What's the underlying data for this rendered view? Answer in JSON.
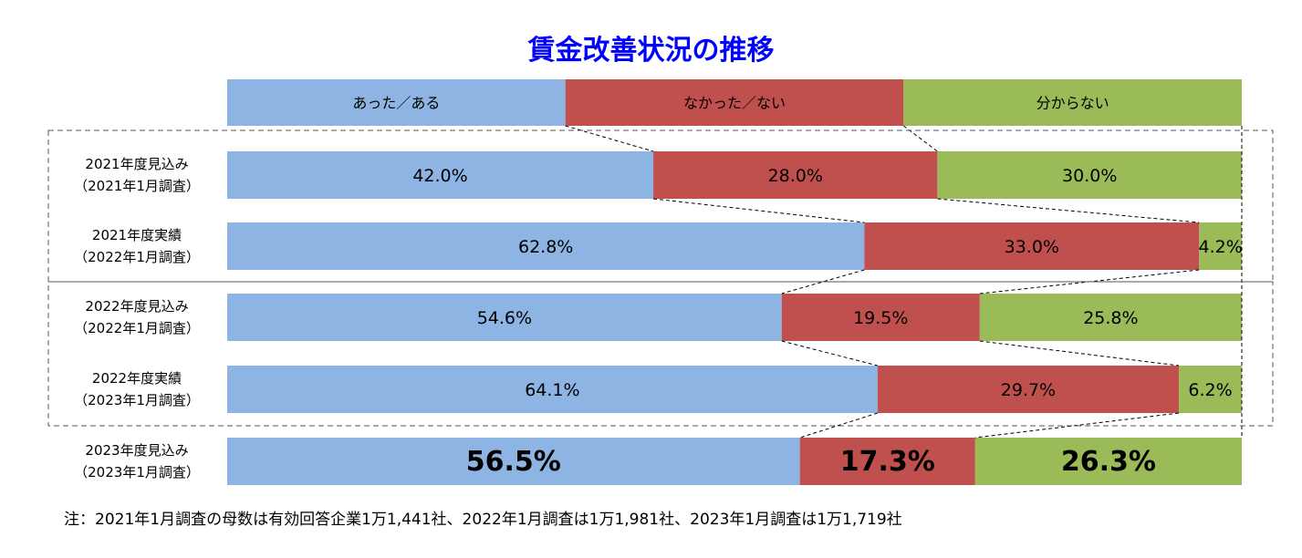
{
  "chart_data": {
    "type": "bar",
    "stacked": true,
    "orientation": "horizontal",
    "title": "賃金改善状況の推移",
    "legend_position": "top",
    "series": [
      {
        "name": "あった／ある",
        "color": "#8db4e2",
        "values": [
          42.0,
          62.8,
          54.6,
          64.1,
          56.5
        ]
      },
      {
        "name": "なかった／ない",
        "color": "#c0504d",
        "values": [
          28.0,
          33.0,
          19.5,
          29.7,
          17.3
        ]
      },
      {
        "name": "分からない",
        "color": "#9bbb59",
        "values": [
          30.0,
          4.2,
          25.8,
          6.2,
          26.3
        ]
      }
    ],
    "categories": [
      {
        "line1": "2021年度見込み",
        "line2": "（2021年1月調査）"
      },
      {
        "line1": "2021年度実績",
        "line2": "（2022年1月調査）"
      },
      {
        "line1": "2022年度見込み",
        "line2": "（2022年1月調査）"
      },
      {
        "line1": "2022年度実績",
        "line2": "（2023年1月調査）"
      },
      {
        "line1": "2023年度見込み",
        "line2": "（2023年1月調査）"
      }
    ],
    "value_labels": [
      [
        "42.0%",
        "28.0%",
        "30.0%"
      ],
      [
        "62.8%",
        "33.0%",
        "4.2%"
      ],
      [
        "54.6%",
        "19.5%",
        "25.8%"
      ],
      [
        "64.1%",
        "29.7%",
        "6.2%"
      ],
      [
        "56.5%",
        "17.3%",
        "26.3%"
      ]
    ]
  },
  "footnote": "注：2021年1月調査の母数は有効回答企業1万1,441社、2022年1月調査は1万1,981社、2023年1月調査は1万1,719社"
}
